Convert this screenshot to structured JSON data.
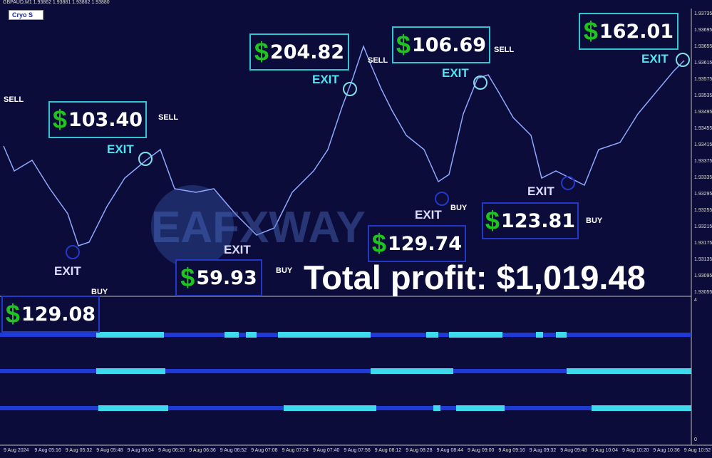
{
  "header": {
    "symbol": "GBPAUD,M1  1.93862 1.93881 1.93862 1.93880",
    "indicator_tab": "Cryo S"
  },
  "price_axis": [
    "1.93735",
    "1.93695",
    "1.93655",
    "1.93615",
    "1.93575",
    "1.93535",
    "1.93495",
    "1.93455",
    "1.93415",
    "1.93375",
    "1.93335",
    "1.93295",
    "1.93255",
    "1.93215",
    "1.93175",
    "1.93135",
    "1.93095",
    "1.93055"
  ],
  "sub_axis": {
    "top": "4",
    "bottom": "0"
  },
  "time_axis": [
    "9 Aug 2024",
    "9 Aug 05:16",
    "9 Aug 05:32",
    "9 Aug 05:48",
    "9 Aug 06:04",
    "9 Aug 06:20",
    "9 Aug 06:36",
    "9 Aug 06:52",
    "9 Aug 07:08",
    "9 Aug 07:24",
    "9 Aug 07:40",
    "9 Aug 07:56",
    "9 Aug 08:12",
    "9 Aug 08:28",
    "9 Aug 08:44",
    "9 Aug 09:00",
    "9 Aug 09:16",
    "9 Aug 09:32",
    "9 Aug 09:48",
    "9 Aug 10:04",
    "9 Aug 10:20",
    "9 Aug 10:36",
    "9 Aug 10:52"
  ],
  "profits": [
    {
      "currency": "$",
      "amount": "103.40"
    },
    {
      "currency": "$",
      "amount": "204.82"
    },
    {
      "currency": "$",
      "amount": "106.69"
    },
    {
      "currency": "$",
      "amount": "162.01"
    },
    {
      "currency": "$",
      "amount": "59.93"
    },
    {
      "currency": "$",
      "amount": "129.74"
    },
    {
      "currency": "$",
      "amount": "123.81"
    },
    {
      "currency": "$",
      "amount": "129.08"
    }
  ],
  "signals": [
    "SELL",
    "SELL",
    "SELL",
    "SELL",
    "BUY",
    "BUY",
    "BUY",
    "BUY",
    "EXIT",
    "EXIT",
    "EXIT",
    "EXIT",
    "EXIT",
    "EXIT",
    "EXIT",
    "EXIT"
  ],
  "watermark": "EAFXWAY",
  "total_profit": "Total profit: $1,019.48"
}
